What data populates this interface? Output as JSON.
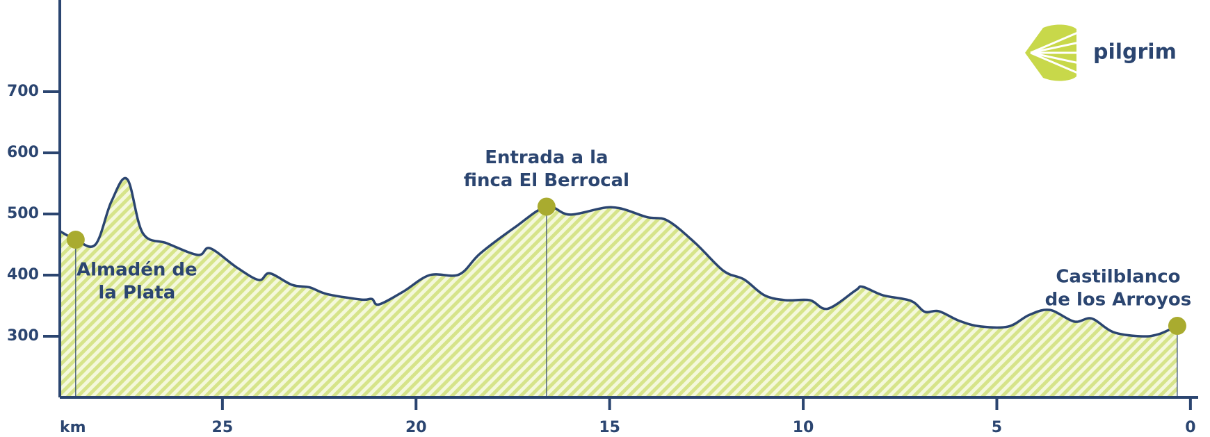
{
  "chart_data": {
    "type": "area",
    "xlabel": "km",
    "brand": "pilgrim",
    "xlim": [
      29.2,
      -0.2
    ],
    "ylim": [
      200,
      850
    ],
    "xticks": [
      25,
      20,
      15,
      10,
      5,
      0
    ],
    "yticks": [
      300,
      400,
      500,
      600,
      700
    ],
    "line_color": "#2b4570",
    "fill_color": "#d6e48a",
    "marker_color": "#a9ab2f",
    "km": [
      29.2,
      28.79,
      28.28,
      27.87,
      27.46,
      27.06,
      26.43,
      25.63,
      25.32,
      24.64,
      24.06,
      23.78,
      23.2,
      22.75,
      22.3,
      21.41,
      21.14,
      20.96,
      20.33,
      19.65,
      18.89,
      18.35,
      17.45,
      16.63,
      16.02,
      14.94,
      14.04,
      13.5,
      12.78,
      12.06,
      11.53,
      11.0,
      10.45,
      9.83,
      9.37,
      8.65,
      8.47,
      7.94,
      7.22,
      6.86,
      6.5,
      5.96,
      5.42,
      4.7,
      4.16,
      3.63,
      3.0,
      2.55,
      2.0,
      1.29,
      0.84,
      0.34
    ],
    "elevation": [
      472,
      458,
      450,
      520,
      557,
      469,
      452,
      433,
      444,
      413,
      392,
      403,
      384,
      380,
      369,
      360,
      361,
      352,
      373,
      400,
      401,
      435,
      478,
      512,
      499,
      511,
      495,
      489,
      452,
      407,
      393,
      367,
      359,
      359,
      345,
      375,
      381,
      367,
      358,
      340,
      341,
      325,
      316,
      316,
      335,
      343,
      324,
      329,
      307,
      300,
      303,
      317
    ],
    "markers": [
      {
        "km": 28.79,
        "elevation": 458,
        "label_lines": [
          "Almadén de",
          "la Plata"
        ]
      },
      {
        "km": 16.63,
        "elevation": 512,
        "label_lines": [
          "Entrada a la",
          "finca El Berrocal"
        ]
      },
      {
        "km": 0.34,
        "elevation": 317,
        "label_lines": [
          "Castilblanco",
          "de los Arroyos"
        ]
      }
    ]
  }
}
